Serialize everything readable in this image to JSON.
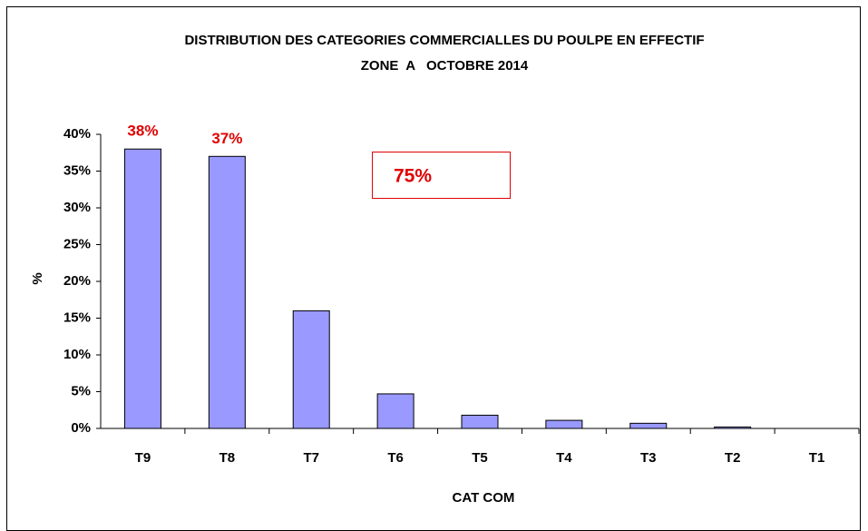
{
  "chart_data": {
    "type": "bar",
    "title": "DISTRIBUTION DES CATEGORIES COMMERCIALLES DU POULPE EN EFFECTIF",
    "subtitle": "ZONE  A   OCTOBRE 2014",
    "x_label": "CAT COM",
    "y_label": "%",
    "categories": [
      "T9",
      "T8",
      "T7",
      "T6",
      "T5",
      "T4",
      "T3",
      "T2",
      "T1"
    ],
    "values": [
      38,
      37,
      16,
      4.7,
      1.8,
      1.1,
      0.7,
      0.2,
      0
    ],
    "value_labels": [
      "38%",
      "37%",
      null,
      null,
      null,
      null,
      null,
      null,
      null
    ],
    "annotation": "75%",
    "color": "#9999ff",
    "ylim": [
      0,
      40
    ],
    "yticks": [
      {
        "value": 0,
        "label": "0%"
      },
      {
        "value": 5,
        "label": "5%"
      },
      {
        "value": 10,
        "label": "10%"
      },
      {
        "value": 15,
        "label": "15%"
      },
      {
        "value": 20,
        "label": "20%"
      },
      {
        "value": 25,
        "label": "25%"
      },
      {
        "value": 30,
        "label": "30%"
      },
      {
        "value": 35,
        "label": "35%"
      },
      {
        "value": 40,
        "label": "40%"
      }
    ],
    "grid": false
  }
}
